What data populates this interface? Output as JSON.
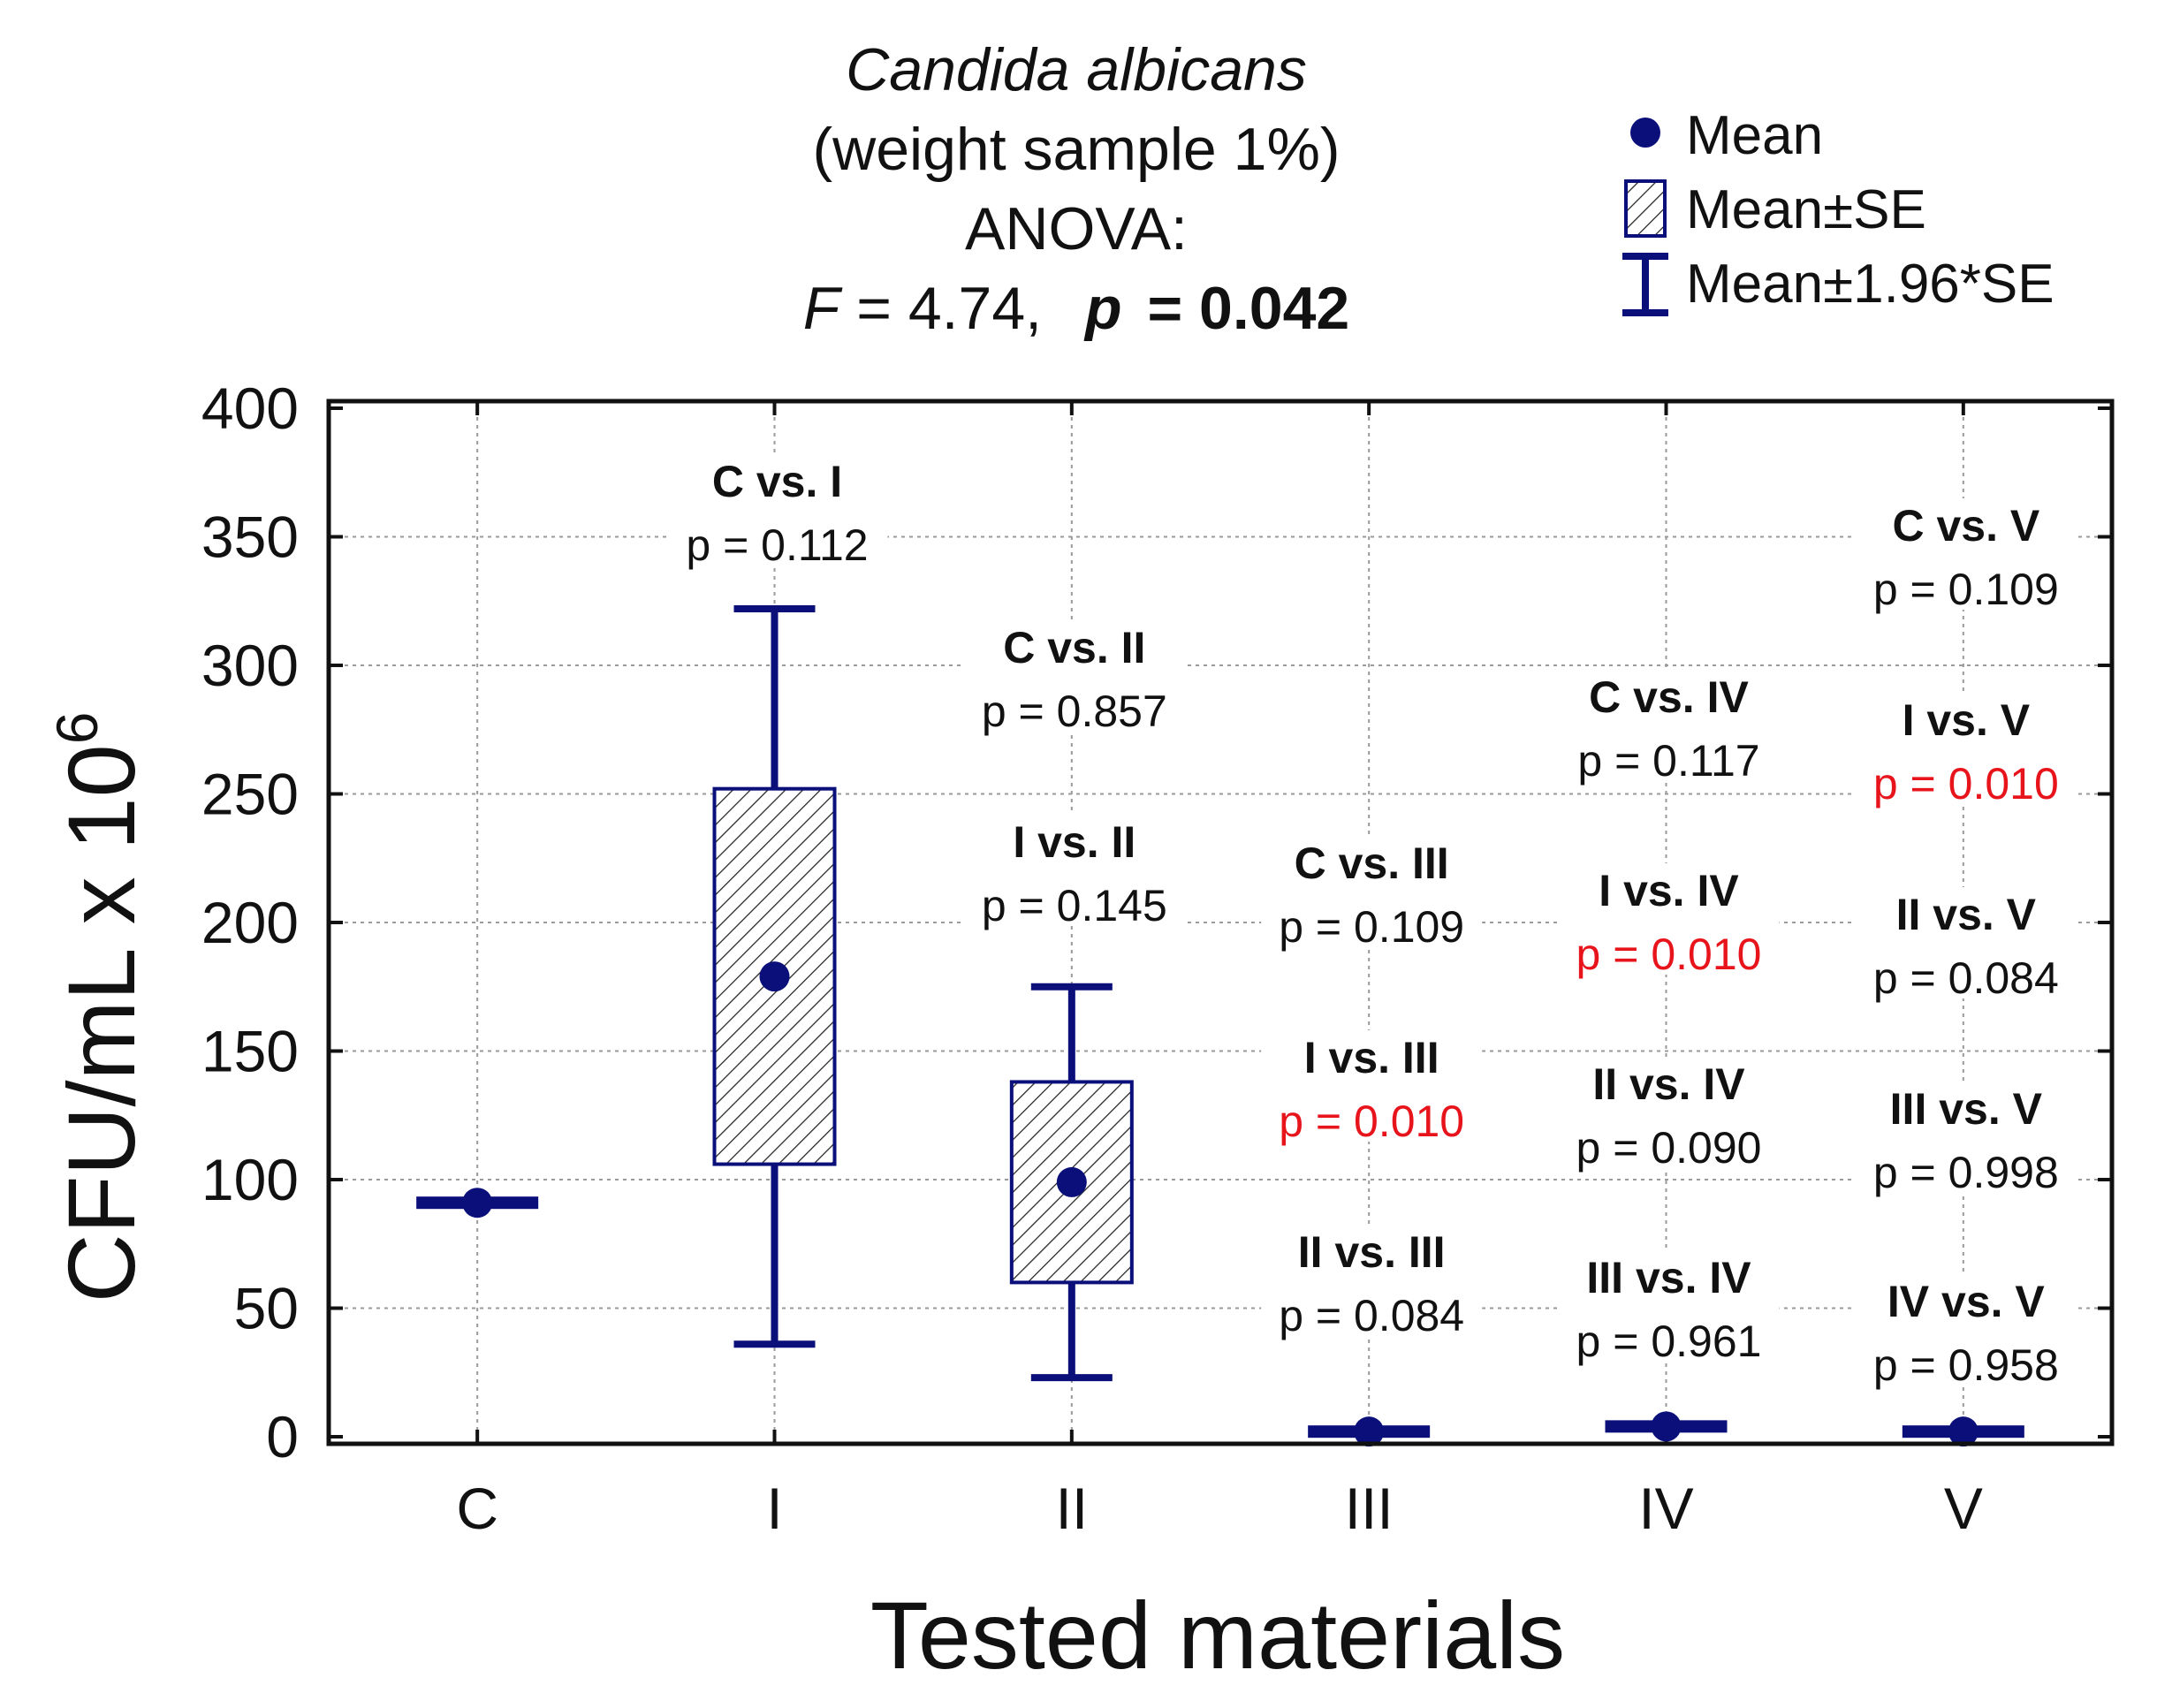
{
  "colors": {
    "series": "#0b0f7a",
    "grid": "#9a9a9a",
    "significant": "#e8141b",
    "axis": "#111111"
  },
  "chart_data": {
    "type": "box",
    "title": "Candida albicans",
    "subtitle": "(weight sample 1%)",
    "test": "ANOVA:",
    "stat_label": "F",
    "stat_value": "= 4.74,",
    "p_label": "p",
    "p_value": "= 0.042",
    "xlabel": "Tested materials",
    "ylabel": "CFU/mL x 10",
    "ylabel_exp": "6",
    "ylim": [
      0,
      400
    ],
    "yticks": [
      "0",
      "50",
      "100",
      "150",
      "200",
      "250",
      "300",
      "350",
      "400"
    ],
    "categories": [
      "C",
      "I",
      "II",
      "III",
      "IV",
      "V"
    ],
    "mean": [
      91,
      179,
      99,
      2,
      4,
      2
    ],
    "se_low": [
      91,
      106,
      60,
      2,
      4,
      2
    ],
    "se_high": [
      91,
      252,
      138,
      2,
      4,
      2
    ],
    "ci_low": [
      89,
      36,
      23,
      1,
      3,
      1
    ],
    "ci_high": [
      91,
      322,
      175,
      2,
      4,
      2
    ],
    "legend": [
      {
        "icon": "mean-dot",
        "label": "Mean"
      },
      {
        "icon": "hatched-box",
        "label": "Mean±SE"
      },
      {
        "icon": "whisker",
        "label": "Mean±1.96*SE"
      }
    ],
    "comparisons": [
      {
        "group": "I",
        "items": [
          {
            "label": "C vs. I",
            "p": "p = 0.112",
            "significant": false
          }
        ]
      },
      {
        "group": "II",
        "items": [
          {
            "label": "C vs. II",
            "p": "p = 0.857",
            "significant": false
          },
          {
            "label": "I vs. II",
            "p": "p = 0.145",
            "significant": false
          }
        ]
      },
      {
        "group": "III",
        "items": [
          {
            "label": "C vs. III",
            "p": "p = 0.109",
            "significant": false
          },
          {
            "label": "I vs. III",
            "p": "p = 0.010",
            "significant": true
          },
          {
            "label": "II vs. III",
            "p": "p = 0.084",
            "significant": false
          }
        ]
      },
      {
        "group": "IV",
        "items": [
          {
            "label": "C vs. IV",
            "p": "p = 0.117",
            "significant": false
          },
          {
            "label": "I vs. IV",
            "p": "p = 0.010",
            "significant": true
          },
          {
            "label": "II vs. IV",
            "p": "p = 0.090",
            "significant": false
          },
          {
            "label": "III vs. IV",
            "p": "p = 0.961",
            "significant": false
          }
        ]
      },
      {
        "group": "V",
        "items": [
          {
            "label": "C vs. V",
            "p": "p = 0.109",
            "significant": false
          },
          {
            "label": "I vs. V",
            "p": "p = 0.010",
            "significant": true
          },
          {
            "label": "II vs. V",
            "p": "p = 0.084",
            "significant": false
          },
          {
            "label": "III vs. V",
            "p": "p = 0.998",
            "significant": false
          },
          {
            "label": "IV vs. V",
            "p": "p = 0.958",
            "significant": false
          }
        ]
      }
    ]
  }
}
